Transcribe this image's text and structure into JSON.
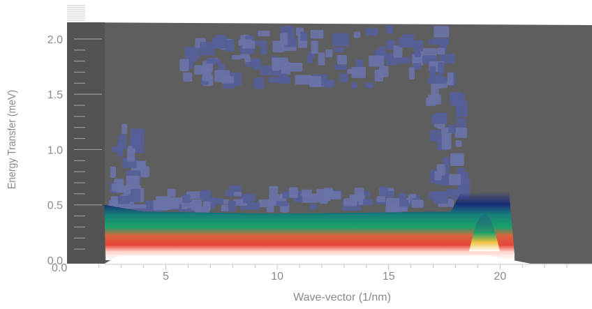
{
  "chart_data": {
    "type": "heatmap",
    "title": "",
    "xlabel": "Wave-vector  (1/nm)",
    "ylabel": "Energy Transfer (meV)",
    "xlim": [
      0.0,
      24.0
    ],
    "ylim": [
      0.0,
      2.1
    ],
    "x_ticks": [
      5,
      10,
      15,
      20
    ],
    "x_tick_labels": [
      "5",
      "10",
      "15",
      "20"
    ],
    "x_origin_label": "0.0",
    "y_ticks": [
      0.0,
      0.5,
      1.0,
      1.5,
      2.0
    ],
    "y_tick_labels": [
      "0.0",
      "0.5",
      "1.0",
      "1.5",
      "2.0"
    ],
    "grid": false,
    "colors": {
      "plot_background": "#5e5e5e",
      "low_intensity": "#4e5ea0",
      "medium_intensity": "#1ca06a",
      "high_intensity": "#e8443a",
      "peak_intensity": "#ffffff"
    },
    "bands": [
      {
        "name": "elastic",
        "x_range": [
          2.2,
          20.8
        ],
        "energy_range": [
          0.0,
          0.08
        ],
        "level": "peak"
      },
      {
        "name": "red",
        "x_range": [
          2.3,
          20.6
        ],
        "energy_range": [
          0.08,
          0.17
        ],
        "level": "high"
      },
      {
        "name": "green",
        "x_range": [
          2.3,
          20.5
        ],
        "energy_range": [
          0.17,
          0.3
        ],
        "level": "medium"
      },
      {
        "name": "blue",
        "x_range": [
          2.3,
          20.2
        ],
        "energy_range": [
          0.3,
          0.45
        ],
        "level": "low"
      }
    ],
    "features": [
      {
        "name": "left-edge-scatter",
        "x": 2.6,
        "energy_range": [
          0.4,
          1.1
        ],
        "level": "low"
      },
      {
        "name": "top-cluster",
        "x_range": [
          5.5,
          17.0
        ],
        "energy_range": [
          1.5,
          2.05
        ],
        "level": "low"
      },
      {
        "name": "right-edge-peak",
        "x": 19.3,
        "energy_range": [
          0.15,
          0.65
        ],
        "level": "medium"
      }
    ]
  }
}
